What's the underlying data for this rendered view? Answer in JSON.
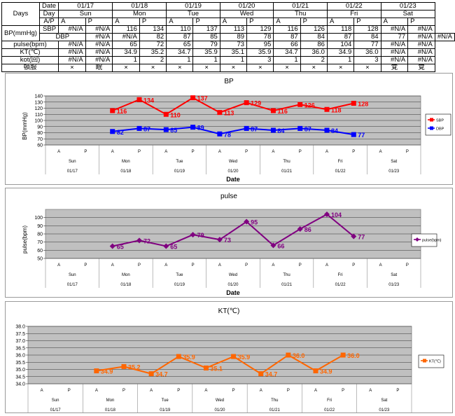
{
  "table": {
    "days_label": "Days",
    "bp_label": "BP(mmHg)",
    "row_labels": {
      "date": "Date",
      "day": "Day",
      "ap": "A/P",
      "sbp": "SBP",
      "dbp": "DBP",
      "pulse": "pulse(bpm)",
      "kt": "KT(℃)",
      "kot": "kot(回)",
      "sleep": "頓服"
    },
    "dates": [
      "01/17",
      "01/18",
      "01/19",
      "01/20",
      "01/21",
      "01/22",
      "01/23"
    ],
    "days": [
      "Sun",
      "Mon",
      "Tue",
      "Wed",
      "Thu",
      "Fri",
      "Sat"
    ],
    "ap": [
      "A",
      "P"
    ],
    "sbp": [
      "#N/A",
      "#N/A",
      "116",
      "134",
      "110",
      "137",
      "113",
      "129",
      "116",
      "126",
      "118",
      "128",
      "#N/A",
      "#N/A"
    ],
    "dbp": [
      "#N/A",
      "#N/A",
      "82",
      "87",
      "85",
      "89",
      "78",
      "87",
      "84",
      "87",
      "84",
      "77",
      "#N/A",
      "#N/A"
    ],
    "pulse": [
      "#N/A",
      "#N/A",
      "65",
      "72",
      "65",
      "79",
      "73",
      "95",
      "66",
      "86",
      "104",
      "77",
      "#N/A",
      "#N/A"
    ],
    "kt": [
      "#N/A",
      "#N/A",
      "34.9",
      "35.2",
      "34.7",
      "35.9",
      "35.1",
      "35.9",
      "34.7",
      "36.0",
      "34.9",
      "36.0",
      "#N/A",
      "#N/A"
    ],
    "kot": [
      "#N/A",
      "#N/A",
      "1",
      "2",
      "1",
      "1",
      "1",
      "3",
      "1",
      "2",
      "1",
      "3",
      "#N/A",
      "#N/A"
    ],
    "sleep": [
      "×",
      "眠",
      "×",
      "×",
      "×",
      "×",
      "×",
      "×",
      "×",
      "×",
      "×",
      "×",
      "覚",
      "覚"
    ]
  },
  "chart_data": [
    {
      "type": "line",
      "title": "BP",
      "xlabel": "Date",
      "ylabel": "BP(mmHg)",
      "ylim": [
        60,
        140
      ],
      "yticks": [
        60,
        70,
        80,
        90,
        100,
        110,
        120,
        130,
        140
      ],
      "grid": true,
      "legend": "right",
      "categories": [
        "A",
        "P",
        "A",
        "P",
        "A",
        "P",
        "A",
        "P",
        "A",
        "P",
        "A",
        "P",
        "A",
        "P"
      ],
      "days": [
        "Sun",
        "Mon",
        "Tue",
        "Wed",
        "Thu",
        "Fri",
        "Sat"
      ],
      "dates": [
        "01/17",
        "01/18",
        "01/19",
        "01/20",
        "01/21",
        "01/22",
        "01/23"
      ],
      "series": [
        {
          "name": "SBP",
          "color": "#ff0000",
          "marker": "square",
          "values": [
            null,
            null,
            116,
            134,
            110,
            137,
            113,
            129,
            116,
            126,
            118,
            128,
            null,
            null
          ]
        },
        {
          "name": "DBP",
          "color": "#0000ff",
          "marker": "square",
          "values": [
            null,
            null,
            82,
            87,
            85,
            89,
            78,
            87,
            84,
            87,
            84,
            77,
            null,
            null
          ]
        }
      ]
    },
    {
      "type": "line",
      "title": "pulse",
      "xlabel": "Date",
      "ylabel": "pulse(bpm)",
      "ylim": [
        50,
        110
      ],
      "yticks": [
        50,
        60,
        70,
        80,
        90,
        100
      ],
      "grid": true,
      "legend": "right",
      "categories": [
        "A",
        "P",
        "A",
        "P",
        "A",
        "P",
        "A",
        "P",
        "A",
        "P",
        "A",
        "P",
        "A",
        "P"
      ],
      "days": [
        "Sun",
        "Mon",
        "Tue",
        "Wed",
        "Thu",
        "Fri",
        "Sat"
      ],
      "dates": [
        "01/17",
        "01/18",
        "01/19",
        "01/20",
        "01/21",
        "01/22",
        "01/23"
      ],
      "series": [
        {
          "name": "pulse(bpm)",
          "color": "#800080",
          "marker": "diamond",
          "values": [
            null,
            null,
            65,
            72,
            65,
            79,
            73,
            95,
            66,
            86,
            104,
            77,
            null,
            null
          ]
        }
      ]
    },
    {
      "type": "line",
      "title": "KT(℃)",
      "xlabel": "",
      "ylabel": "",
      "ylim": [
        34.0,
        38.0
      ],
      "yticks": [
        "34.0",
        "34.5",
        "35.0",
        "35.5",
        "36.0",
        "36.5",
        "37.0",
        "37.5",
        "38.0"
      ],
      "grid": true,
      "legend": "right",
      "categories": [
        "A",
        "P",
        "A",
        "P",
        "A",
        "P",
        "A",
        "P",
        "A",
        "P",
        "A",
        "P",
        "A",
        "P"
      ],
      "days": [
        "Sun",
        "Mon",
        "Tue",
        "Wed",
        "Thu",
        "Fri",
        "Sat"
      ],
      "dates": [
        "01/17",
        "01/18",
        "01/19",
        "01/20",
        "01/21",
        "01/22",
        "01/23"
      ],
      "series": [
        {
          "name": "KT(℃)",
          "color": "#ff6600",
          "marker": "square",
          "values": [
            null,
            null,
            34.9,
            35.2,
            34.7,
            35.9,
            35.1,
            35.9,
            34.7,
            36.0,
            34.9,
            36.0,
            null,
            null
          ]
        }
      ]
    }
  ]
}
